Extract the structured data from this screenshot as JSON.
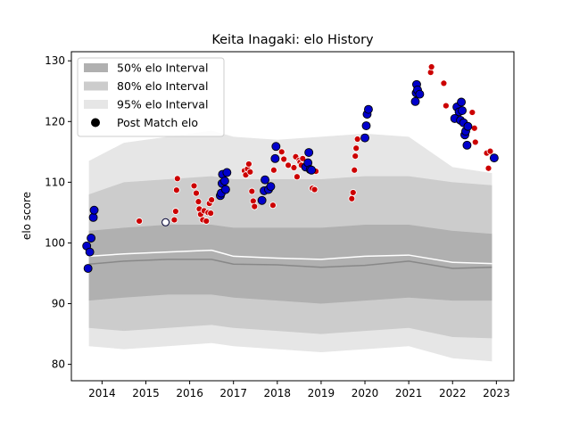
{
  "chart_data": {
    "type": "scatter",
    "title": "Keita Inagaki: elo History",
    "xlabel": "",
    "ylabel": "elo score",
    "xlim": [
      2013.3,
      2023.4
    ],
    "ylim": [
      77.3,
      131.5
    ],
    "x_ticks": [
      2014,
      2015,
      2016,
      2017,
      2018,
      2019,
      2020,
      2021,
      2022,
      2023
    ],
    "y_ticks": [
      80,
      90,
      100,
      110,
      120,
      130
    ],
    "grid": false,
    "legend_position": "top-left",
    "legend": [
      {
        "label": "50% elo Interval",
        "type": "band",
        "color": "#b0b0b0"
      },
      {
        "label": "80% elo Interval",
        "type": "band",
        "color": "#cccccc"
      },
      {
        "label": "95% elo Interval",
        "type": "band",
        "color": "#e6e6e6"
      },
      {
        "label": "Post Match elo",
        "type": "marker",
        "color": "#000000"
      }
    ],
    "colors": {
      "band95": "#e6e6e6",
      "band80": "#cccccc",
      "band50": "#b0b0b0",
      "median_line": "#888888",
      "mean_line": "#ffffff",
      "win_marker": "#0000cc",
      "loss_marker": "#cc0000",
      "draw_marker": "#ffffff"
    },
    "bands": {
      "x": [
        2013.7,
        2014.5,
        2015.5,
        2016.5,
        2017.0,
        2018.0,
        2019.0,
        2020.0,
        2021.0,
        2022.0,
        2022.9
      ],
      "upper95": [
        113.5,
        116.5,
        117.5,
        118.5,
        117.5,
        117.0,
        117.5,
        118.0,
        117.5,
        112.5,
        111.5
      ],
      "upper80": [
        108.0,
        110.0,
        110.5,
        111.0,
        110.5,
        110.5,
        110.5,
        111.0,
        111.0,
        110.0,
        109.5
      ],
      "upper50": [
        102.0,
        102.5,
        103.0,
        103.0,
        102.5,
        102.5,
        102.5,
        103.0,
        103.0,
        102.0,
        101.5
      ],
      "median": [
        96.5,
        97.0,
        97.3,
        97.3,
        96.5,
        96.4,
        96.0,
        96.3,
        97.0,
        95.8,
        96.0
      ],
      "mean": [
        97.8,
        98.2,
        98.5,
        98.8,
        97.8,
        97.5,
        97.3,
        97.8,
        98.0,
        96.8,
        96.6
      ],
      "lower50": [
        90.5,
        91.0,
        91.5,
        91.5,
        91.0,
        90.5,
        90.0,
        90.5,
        91.0,
        90.5,
        90.5
      ],
      "lower80": [
        86.0,
        85.5,
        86.0,
        86.5,
        86.0,
        85.5,
        85.0,
        85.5,
        86.0,
        84.5,
        84.3
      ],
      "lower95": [
        83.0,
        82.5,
        83.0,
        83.5,
        83.0,
        82.5,
        82.0,
        82.5,
        83.0,
        81.0,
        80.5
      ]
    },
    "points_win": [
      [
        2013.65,
        99.5
      ],
      [
        2013.68,
        95.8
      ],
      [
        2013.72,
        98.5
      ],
      [
        2013.75,
        100.8
      ],
      [
        2013.8,
        104.2
      ],
      [
        2013.82,
        105.4
      ],
      [
        2016.7,
        107.8
      ],
      [
        2016.72,
        108.2
      ],
      [
        2016.74,
        109.8
      ],
      [
        2016.75,
        111.3
      ],
      [
        2016.8,
        110.2
      ],
      [
        2016.82,
        108.8
      ],
      [
        2016.85,
        111.6
      ],
      [
        2017.65,
        107.0
      ],
      [
        2017.7,
        108.6
      ],
      [
        2017.72,
        110.4
      ],
      [
        2017.8,
        108.8
      ],
      [
        2017.85,
        109.3
      ],
      [
        2017.95,
        113.9
      ],
      [
        2017.97,
        115.9
      ],
      [
        2018.65,
        112.5
      ],
      [
        2018.7,
        113.2
      ],
      [
        2018.72,
        114.9
      ],
      [
        2018.75,
        112.1
      ],
      [
        2018.78,
        112.0
      ],
      [
        2020.0,
        117.3
      ],
      [
        2020.03,
        119.3
      ],
      [
        2020.05,
        121.2
      ],
      [
        2020.08,
        122.0
      ],
      [
        2021.15,
        123.3
      ],
      [
        2021.17,
        124.7
      ],
      [
        2021.18,
        126.1
      ],
      [
        2021.2,
        125.2
      ],
      [
        2021.25,
        124.5
      ],
      [
        2022.05,
        120.5
      ],
      [
        2022.1,
        122.4
      ],
      [
        2022.15,
        121.6
      ],
      [
        2022.18,
        120.2
      ],
      [
        2022.2,
        123.2
      ],
      [
        2022.22,
        121.8
      ],
      [
        2022.25,
        119.8
      ],
      [
        2022.28,
        117.8
      ],
      [
        2022.3,
        118.4
      ],
      [
        2022.33,
        116.1
      ],
      [
        2022.35,
        119.2
      ],
      [
        2022.95,
        114.0
      ]
    ],
    "points_loss": [
      [
        2014.85,
        103.6
      ],
      [
        2015.65,
        103.8
      ],
      [
        2015.68,
        105.2
      ],
      [
        2015.7,
        108.7
      ],
      [
        2015.72,
        110.6
      ],
      [
        2016.1,
        109.4
      ],
      [
        2016.15,
        108.2
      ],
      [
        2016.2,
        106.8
      ],
      [
        2016.22,
        105.6
      ],
      [
        2016.25,
        104.7
      ],
      [
        2016.3,
        103.8
      ],
      [
        2016.33,
        105.3
      ],
      [
        2016.38,
        103.6
      ],
      [
        2016.42,
        105.0
      ],
      [
        2016.45,
        106.5
      ],
      [
        2016.48,
        104.9
      ],
      [
        2016.5,
        107.1
      ],
      [
        2017.25,
        111.9
      ],
      [
        2017.28,
        111.2
      ],
      [
        2017.32,
        112.2
      ],
      [
        2017.35,
        113.0
      ],
      [
        2017.38,
        111.7
      ],
      [
        2017.42,
        108.5
      ],
      [
        2017.45,
        106.9
      ],
      [
        2017.48,
        106.0
      ],
      [
        2017.9,
        106.2
      ],
      [
        2017.92,
        112.0
      ],
      [
        2018.1,
        115.0
      ],
      [
        2018.15,
        113.8
      ],
      [
        2018.25,
        112.8
      ],
      [
        2018.38,
        112.4
      ],
      [
        2018.42,
        114.2
      ],
      [
        2018.45,
        110.9
      ],
      [
        2018.5,
        113.6
      ],
      [
        2018.52,
        113.3
      ],
      [
        2018.55,
        112.8
      ],
      [
        2018.58,
        113.9
      ],
      [
        2018.8,
        109.0
      ],
      [
        2018.85,
        108.8
      ],
      [
        2018.88,
        111.8
      ],
      [
        2019.7,
        107.3
      ],
      [
        2019.73,
        108.3
      ],
      [
        2019.76,
        112.0
      ],
      [
        2019.78,
        114.3
      ],
      [
        2019.8,
        115.6
      ],
      [
        2019.83,
        117.1
      ],
      [
        2021.5,
        128.1
      ],
      [
        2021.52,
        129.0
      ],
      [
        2021.8,
        126.3
      ],
      [
        2021.85,
        122.6
      ],
      [
        2022.45,
        121.5
      ],
      [
        2022.5,
        118.9
      ],
      [
        2022.52,
        116.6
      ],
      [
        2022.78,
        114.8
      ],
      [
        2022.82,
        112.3
      ],
      [
        2022.86,
        115.1
      ]
    ],
    "points_draw": [
      [
        2015.45,
        103.4
      ]
    ]
  }
}
